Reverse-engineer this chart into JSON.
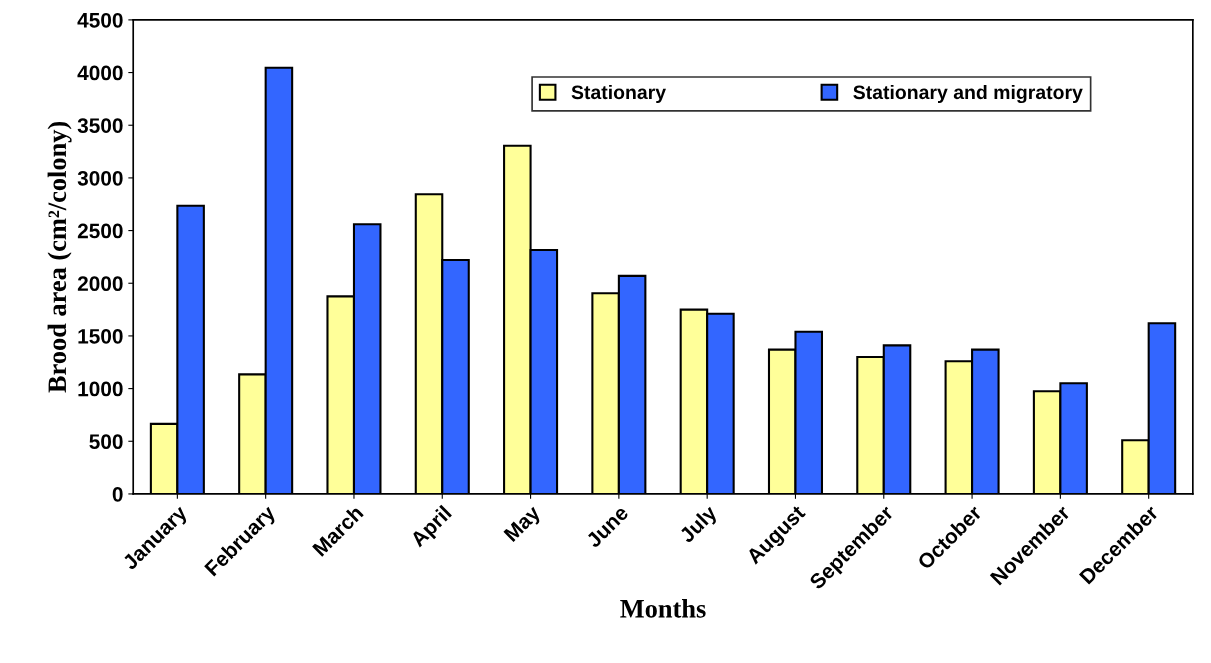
{
  "chart_data": {
    "type": "bar",
    "xlabel": "Months",
    "ylabel": "Brood area (cm²/colony)",
    "categories": [
      "January",
      "February",
      "March",
      "April",
      "May",
      "June",
      "July",
      "August",
      "September",
      "October",
      "November",
      "December"
    ],
    "series": [
      {
        "name": "Stationary",
        "color": "#ffff99",
        "values": [
          665,
          1135,
          1875,
          2845,
          3305,
          1905,
          1750,
          1370,
          1300,
          1260,
          975,
          510
        ]
      },
      {
        "name": "Stationary and migratory",
        "color": "#3366ff",
        "values": [
          2735,
          4045,
          2560,
          2220,
          2315,
          2070,
          1710,
          1540,
          1410,
          1370,
          1050,
          1620
        ]
      }
    ],
    "ylim": [
      0,
      4500
    ],
    "yticks": [
      0,
      500,
      1000,
      1500,
      2000,
      2500,
      3000,
      3500,
      4000,
      4500
    ],
    "grid": false,
    "legend": "top"
  }
}
